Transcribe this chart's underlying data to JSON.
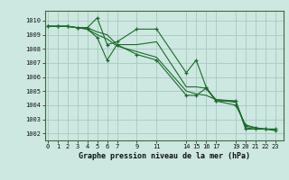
{
  "title": "Graphe pression niveau de la mer (hPa)",
  "background_color": "#cce8e0",
  "grid_color": "#aac8c0",
  "line_color": "#1a6b2a",
  "xtick_positions": [
    0,
    1,
    2,
    3,
    4,
    5,
    6,
    7,
    9,
    11,
    14,
    15,
    16,
    17,
    19,
    20,
    21,
    22,
    23
  ],
  "xtick_labels": [
    "0",
    "1",
    "2",
    "3",
    "4",
    "5",
    "6",
    "7",
    "9",
    "11",
    "14",
    "15",
    "16",
    "17",
    "19",
    "20",
    "21",
    "22",
    "23"
  ],
  "ylim": [
    1001.5,
    1010.7
  ],
  "yticks": [
    1002,
    1003,
    1004,
    1005,
    1006,
    1007,
    1008,
    1009,
    1010
  ],
  "xlim": [
    -0.3,
    23.8
  ],
  "series": [
    {
      "x": [
        0,
        1,
        2,
        3,
        4,
        5,
        6,
        7,
        9,
        11,
        14,
        15,
        16,
        17,
        19,
        20,
        21,
        22,
        23
      ],
      "y": [
        1009.6,
        1009.6,
        1009.6,
        1009.5,
        1009.5,
        1010.2,
        1008.3,
        1008.5,
        1009.4,
        1009.4,
        1006.3,
        1007.2,
        1005.3,
        1004.3,
        1004.3,
        1002.3,
        1002.3,
        1002.3,
        1002.3
      ],
      "marker": "+"
    },
    {
      "x": [
        0,
        1,
        2,
        3,
        4,
        5,
        6,
        7,
        9,
        11,
        14,
        15,
        16,
        17,
        19,
        20,
        21,
        22,
        23
      ],
      "y": [
        1009.6,
        1009.6,
        1009.6,
        1009.5,
        1009.5,
        1009.2,
        1009.0,
        1008.3,
        1008.3,
        1008.5,
        1005.3,
        1005.3,
        1005.2,
        1004.4,
        1004.3,
        1002.4,
        1002.3,
        1002.3,
        1002.3
      ],
      "marker": null
    },
    {
      "x": [
        0,
        1,
        2,
        3,
        4,
        5,
        6,
        7,
        9,
        11,
        14,
        15,
        16,
        17,
        19,
        20,
        21,
        22,
        23
      ],
      "y": [
        1009.6,
        1009.6,
        1009.6,
        1009.5,
        1009.4,
        1009.0,
        1008.7,
        1008.2,
        1007.8,
        1007.4,
        1005.0,
        1004.8,
        1004.7,
        1004.4,
        1004.2,
        1002.5,
        1002.4,
        1002.3,
        1002.3
      ],
      "marker": null
    },
    {
      "x": [
        0,
        1,
        2,
        3,
        4,
        5,
        6,
        7,
        9,
        11,
        14,
        15,
        16,
        17,
        19,
        20,
        21,
        22,
        23
      ],
      "y": [
        1009.6,
        1009.6,
        1009.6,
        1009.5,
        1009.4,
        1008.8,
        1007.2,
        1008.3,
        1007.6,
        1007.2,
        1004.7,
        1004.7,
        1005.2,
        1004.3,
        1004.0,
        1002.6,
        1002.4,
        1002.3,
        1002.2
      ],
      "marker": "+"
    }
  ]
}
